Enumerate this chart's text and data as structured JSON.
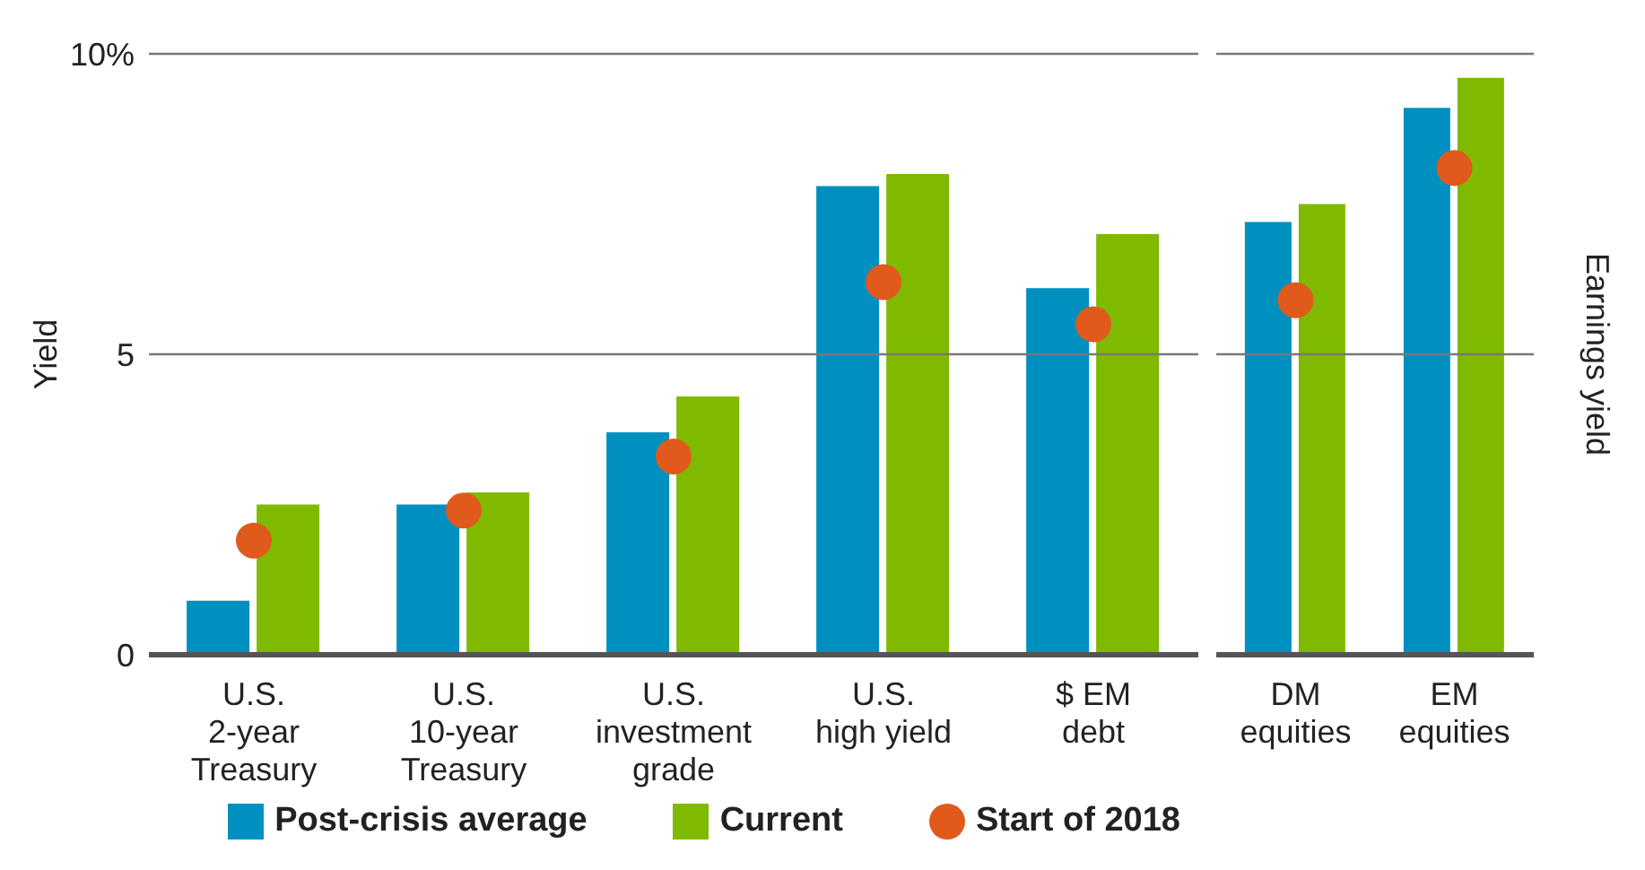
{
  "chart_data": [
    {
      "type": "bar",
      "ylabel": "Yield",
      "categories": [
        "U.S. 2-year Treasury",
        "U.S. 10-year Treasury",
        "U.S. investment grade",
        "U.S. high yield",
        "$ EM debt"
      ],
      "series": [
        {
          "name": "Post-crisis average",
          "color": "#0090bf",
          "values": [
            0.9,
            2.5,
            3.7,
            7.8,
            6.1
          ]
        },
        {
          "name": "Current",
          "color": "#7fba00",
          "values": [
            2.5,
            2.7,
            4.3,
            8.0,
            7.0
          ]
        },
        {
          "name": "Start of 2018",
          "type": "scatter",
          "marker": "circle",
          "color": "#e05a1c",
          "x": [
            "U.S. 2-year Treasury",
            "U.S. 10-year Treasury",
            "U.S. investment grade",
            "U.S. high yield",
            "$ EM debt"
          ],
          "values": [
            1.9,
            2.4,
            3.3,
            6.2,
            5.5
          ]
        }
      ],
      "ylim": [
        0,
        10
      ],
      "yticks": [
        0,
        5,
        {
          "value": 10,
          "label": "10%"
        }
      ],
      "grid": "y",
      "legend": "bottom"
    },
    {
      "type": "bar",
      "ylabel": "Earnings yield",
      "categories": [
        "DM equities",
        "EM equities"
      ],
      "series": [
        {
          "color": "#0090bf",
          "values": [
            7.2,
            9.1
          ]
        },
        {
          "color": "#7fba00",
          "values": [
            7.5,
            9.6
          ]
        },
        {
          "type": "scatter",
          "marker": "circle",
          "color": "#e05a1c",
          "x": [
            "DM equities",
            "EM equities"
          ],
          "values": [
            5.9,
            8.1
          ]
        }
      ],
      "ylim": [
        0,
        10
      ],
      "yticks": [
        0,
        5,
        10
      ],
      "grid": "y",
      "tick_labels": "x"
    }
  ]
}
